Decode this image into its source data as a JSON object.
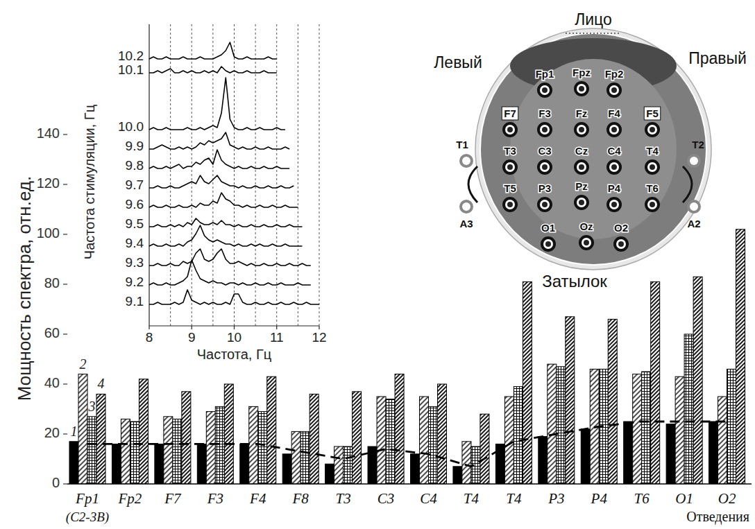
{
  "chart_data": [
    {
      "type": "bar",
      "y_label": "Мощность спектра, отн.ед.",
      "x_label": "Отведения",
      "annotation": "(C2-3B)",
      "categories": [
        "Fp1",
        "Fp2",
        "F7",
        "F3",
        "F4",
        "F8",
        "T3",
        "C3",
        "C4",
        "T4",
        "T4",
        "P3",
        "P4",
        "T6",
        "O1",
        "O2"
      ],
      "ylim": [
        0,
        140
      ],
      "yticks": [
        0,
        20,
        40,
        60,
        80,
        100,
        120,
        140
      ],
      "series": [
        {
          "name": "1",
          "color": "#000000",
          "values": [
            17,
            16,
            16,
            16,
            16,
            12,
            8,
            15,
            12,
            7,
            16,
            19,
            22,
            25,
            24,
            25
          ]
        },
        {
          "name": "2",
          "color": "#000000",
          "values": [
            44,
            26,
            27,
            29,
            31,
            21,
            15,
            35,
            35,
            17,
            35,
            48,
            46,
            44,
            43,
            35
          ]
        },
        {
          "name": "3",
          "color": "#000000",
          "values": [
            27,
            25,
            26,
            31,
            29,
            21,
            15,
            34,
            31,
            15,
            39,
            47,
            46,
            45,
            60,
            46
          ]
        },
        {
          "name": "4",
          "color": "#000000",
          "values": [
            36,
            42,
            37,
            40,
            43,
            36,
            37,
            44,
            40,
            28,
            81,
            67,
            66,
            81,
            83,
            102
          ]
        },
        {
          "type": "line",
          "line_style": "dashed",
          "color": "#000000",
          "values": [
            16,
            16,
            16,
            16,
            16,
            13,
            10,
            14,
            12,
            7,
            17,
            20,
            23,
            25,
            25,
            25
          ]
        }
      ]
    },
    {
      "type": "line",
      "x_label": "Частота, Гц",
      "y_label": "Частота стимуляции, Гц",
      "xlim": [
        8,
        12
      ],
      "xticks": [
        8,
        9,
        10,
        11,
        12
      ],
      "ylim": [
        0,
        30
      ],
      "grid": true,
      "tick_labels": "x",
      "x": [
        8,
        8.1,
        8.2,
        8.3,
        8.4,
        8.5,
        8.6,
        8.7,
        8.8,
        8.9,
        9,
        9.1,
        9.2,
        9.3,
        9.4,
        9.5,
        9.6,
        9.7,
        9.8,
        9.9,
        10,
        10.1,
        10.2,
        10.3,
        10.4,
        10.5,
        10.6,
        10.7,
        10.8,
        10.9,
        11,
        11.1,
        11.2,
        11.3,
        11.4,
        11.5,
        11.6,
        11.7,
        11.8,
        11.9,
        12
      ],
      "series": [
        {
          "name": "10.2",
          "color": "#000000",
          "values": [
            1,
            2,
            1,
            1,
            2,
            1,
            1,
            1,
            2,
            1,
            1,
            1,
            2,
            1,
            1,
            1,
            2,
            3,
            5,
            9,
            2,
            1,
            1,
            2,
            1,
            1,
            1,
            1,
            2,
            1,
            1,
            null,
            null,
            null,
            null,
            null,
            null,
            null,
            null,
            null,
            null
          ]
        },
        {
          "name": "10.1",
          "color": "#000000",
          "values": [
            1,
            1,
            2,
            1,
            2,
            3,
            1,
            1,
            2,
            1,
            2,
            1,
            1,
            2,
            1,
            2,
            1,
            4,
            2,
            1,
            2,
            1,
            1,
            2,
            1,
            1,
            1,
            2,
            1,
            1,
            1,
            null,
            null,
            null,
            null,
            null,
            null,
            null,
            null,
            null,
            null
          ]
        },
        {
          "name": "10.0",
          "color": "#000000",
          "values": [
            1,
            2,
            1,
            1,
            2,
            1,
            1,
            1,
            1,
            2,
            1,
            1,
            2,
            1,
            2,
            3,
            2,
            9,
            26,
            6,
            2,
            1,
            1,
            2,
            1,
            1,
            2,
            1,
            1,
            1,
            2,
            1,
            1,
            null,
            null,
            null,
            null,
            null,
            null,
            null,
            null
          ]
        },
        {
          "name": "9.9",
          "color": "#000000",
          "values": [
            1,
            1,
            2,
            3,
            2,
            1,
            1,
            2,
            1,
            2,
            1,
            2,
            4,
            3,
            5,
            4,
            5,
            6,
            9,
            3,
            2,
            1,
            2,
            1,
            1,
            2,
            1,
            1,
            2,
            1,
            1,
            1,
            2,
            1,
            null,
            null,
            null,
            null,
            null,
            null,
            null
          ]
        },
        {
          "name": "9.8",
          "color": "#000000",
          "values": [
            1,
            2,
            1,
            1,
            2,
            1,
            2,
            3,
            1,
            2,
            2,
            4,
            3,
            5,
            6,
            3,
            10,
            5,
            3,
            2,
            1,
            2,
            1,
            1,
            2,
            1,
            1,
            2,
            1,
            1,
            2,
            1,
            1,
            1,
            null,
            null,
            null,
            null,
            null,
            null,
            null
          ]
        },
        {
          "name": "9.7",
          "color": "#000000",
          "values": [
            1,
            1,
            2,
            1,
            1,
            2,
            1,
            1,
            2,
            3,
            4,
            3,
            7,
            4,
            3,
            5,
            7,
            4,
            3,
            2,
            2,
            1,
            2,
            1,
            1,
            2,
            1,
            1,
            2,
            1,
            1,
            2,
            1,
            1,
            2,
            null,
            null,
            null,
            null,
            null,
            null
          ]
        },
        {
          "name": "9.6",
          "color": "#000000",
          "values": [
            1,
            2,
            1,
            1,
            2,
            1,
            1,
            2,
            1,
            1,
            2,
            1,
            3,
            2,
            2,
            4,
            3,
            8,
            5,
            4,
            2,
            2,
            1,
            2,
            1,
            1,
            2,
            1,
            1,
            2,
            1,
            1,
            2,
            1,
            1,
            1,
            null,
            null,
            null,
            null,
            null
          ]
        },
        {
          "name": "9.5",
          "color": "#000000",
          "values": [
            1,
            1,
            2,
            1,
            1,
            2,
            1,
            2,
            1,
            3,
            2,
            5,
            3,
            2,
            2,
            3,
            2,
            4,
            2,
            2,
            1,
            2,
            1,
            1,
            2,
            1,
            1,
            2,
            1,
            1,
            2,
            1,
            1,
            2,
            1,
            1,
            1,
            null,
            null,
            null,
            null
          ]
        },
        {
          "name": "9.4",
          "color": "#000000",
          "values": [
            1,
            2,
            1,
            1,
            2,
            1,
            1,
            2,
            1,
            3,
            4,
            7,
            11,
            6,
            4,
            3,
            4,
            3,
            2,
            2,
            1,
            2,
            1,
            1,
            2,
            1,
            2,
            1,
            1,
            2,
            1,
            1,
            2,
            1,
            1,
            1,
            1,
            null,
            null,
            null,
            null
          ]
        },
        {
          "name": "9.3",
          "color": "#000000",
          "values": [
            1,
            1,
            2,
            1,
            1,
            2,
            1,
            1,
            3,
            2,
            3,
            7,
            9,
            4,
            3,
            4,
            7,
            9,
            4,
            2,
            2,
            3,
            2,
            1,
            2,
            1,
            1,
            2,
            1,
            1,
            2,
            1,
            1,
            2,
            1,
            1,
            2,
            1,
            1,
            null,
            null
          ]
        },
        {
          "name": "9.2",
          "color": "#000000",
          "values": [
            1,
            2,
            1,
            1,
            2,
            1,
            1,
            2,
            3,
            5,
            13,
            8,
            4,
            3,
            2,
            3,
            2,
            2,
            1,
            2,
            2,
            1,
            2,
            1,
            1,
            2,
            1,
            1,
            2,
            1,
            1,
            2,
            1,
            1,
            1,
            2,
            1,
            1,
            1,
            null,
            null
          ]
        },
        {
          "name": "9.1",
          "color": "#000000",
          "values": [
            1,
            1,
            2,
            1,
            1,
            1,
            2,
            1,
            2,
            8,
            3,
            2,
            1,
            2,
            1,
            2,
            1,
            1,
            2,
            1,
            6,
            6,
            2,
            1,
            1,
            2,
            1,
            1,
            2,
            1,
            1,
            2,
            1,
            1,
            2,
            1,
            1,
            2,
            1,
            1,
            1
          ]
        }
      ]
    }
  ],
  "diagram": {
    "face": "Лицо",
    "left": "Левый",
    "right": "Правый",
    "back": "Затылок",
    "electrodes": [
      {
        "label": "Fp1"
      },
      {
        "label": "Fpz"
      },
      {
        "label": "Fp2"
      },
      {
        "label": "F7",
        "highlight": true
      },
      {
        "label": "F3"
      },
      {
        "label": "Fz"
      },
      {
        "label": "F4"
      },
      {
        "label": "F5",
        "highlight": true
      },
      {
        "label": "T3"
      },
      {
        "label": "C3"
      },
      {
        "label": "Cz"
      },
      {
        "label": "C4"
      },
      {
        "label": "T4"
      },
      {
        "label": "T5"
      },
      {
        "label": "P3"
      },
      {
        "label": "Pz"
      },
      {
        "label": "P4"
      },
      {
        "label": "T6"
      },
      {
        "label": "O1"
      },
      {
        "label": "Oz"
      },
      {
        "label": "O2"
      },
      {
        "label": "T1"
      },
      {
        "label": "A3"
      },
      {
        "label": "T2"
      },
      {
        "label": "A2"
      }
    ]
  }
}
